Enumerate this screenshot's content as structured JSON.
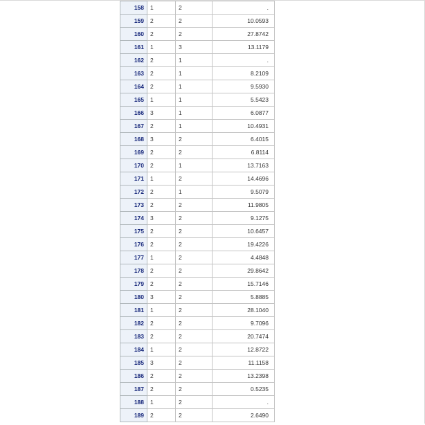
{
  "table": {
    "rows": [
      {
        "obs": "158",
        "a": "1",
        "b": "2",
        "v": "."
      },
      {
        "obs": "159",
        "a": "2",
        "b": "2",
        "v": "10.0593"
      },
      {
        "obs": "160",
        "a": "2",
        "b": "2",
        "v": "27.8742"
      },
      {
        "obs": "161",
        "a": "1",
        "b": "3",
        "v": "13.1179"
      },
      {
        "obs": "162",
        "a": "2",
        "b": "1",
        "v": "."
      },
      {
        "obs": "163",
        "a": "2",
        "b": "1",
        "v": "8.2109"
      },
      {
        "obs": "164",
        "a": "2",
        "b": "1",
        "v": "9.5930"
      },
      {
        "obs": "165",
        "a": "1",
        "b": "1",
        "v": "5.5423"
      },
      {
        "obs": "166",
        "a": "3",
        "b": "1",
        "v": "6.0877"
      },
      {
        "obs": "167",
        "a": "2",
        "b": "1",
        "v": "10.4931"
      },
      {
        "obs": "168",
        "a": "3",
        "b": "2",
        "v": "6.4015"
      },
      {
        "obs": "169",
        "a": "2",
        "b": "2",
        "v": "6.8114"
      },
      {
        "obs": "170",
        "a": "2",
        "b": "1",
        "v": "13.7163"
      },
      {
        "obs": "171",
        "a": "1",
        "b": "2",
        "v": "14.4696"
      },
      {
        "obs": "172",
        "a": "2",
        "b": "1",
        "v": "9.5079"
      },
      {
        "obs": "173",
        "a": "2",
        "b": "2",
        "v": "11.9805"
      },
      {
        "obs": "174",
        "a": "3",
        "b": "2",
        "v": "9.1275"
      },
      {
        "obs": "175",
        "a": "2",
        "b": "2",
        "v": "10.6457"
      },
      {
        "obs": "176",
        "a": "2",
        "b": "2",
        "v": "19.4226"
      },
      {
        "obs": "177",
        "a": "1",
        "b": "2",
        "v": "4.4848"
      },
      {
        "obs": "178",
        "a": "2",
        "b": "2",
        "v": "29.8642"
      },
      {
        "obs": "179",
        "a": "2",
        "b": "2",
        "v": "15.7146"
      },
      {
        "obs": "180",
        "a": "3",
        "b": "2",
        "v": "5.8885"
      },
      {
        "obs": "181",
        "a": "1",
        "b": "2",
        "v": "28.1040"
      },
      {
        "obs": "182",
        "a": "2",
        "b": "2",
        "v": "9.7096"
      },
      {
        "obs": "183",
        "a": "2",
        "b": "2",
        "v": "20.7474"
      },
      {
        "obs": "184",
        "a": "1",
        "b": "2",
        "v": "12.8722"
      },
      {
        "obs": "185",
        "a": "3",
        "b": "2",
        "v": "11.1158"
      },
      {
        "obs": "186",
        "a": "2",
        "b": "2",
        "v": "13.2398"
      },
      {
        "obs": "187",
        "a": "2",
        "b": "2",
        "v": "0.5235"
      },
      {
        "obs": "188",
        "a": "1",
        "b": "2",
        "v": "."
      },
      {
        "obs": "189",
        "a": "2",
        "b": "2",
        "v": "2.6490"
      }
    ]
  }
}
